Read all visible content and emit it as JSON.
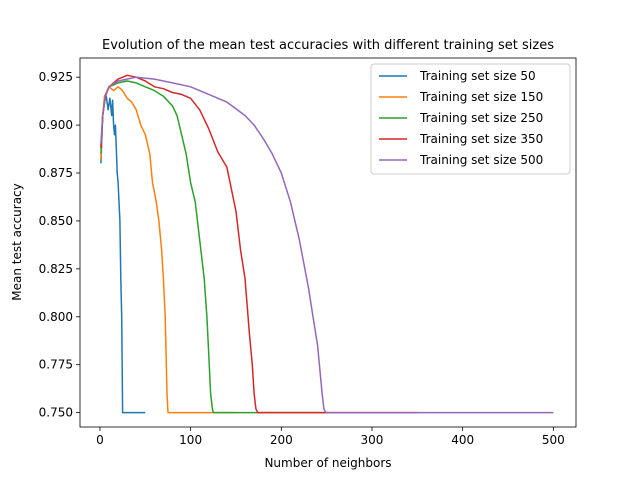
{
  "chart_data": {
    "type": "line",
    "title": "Evolution of the mean test accuracies with different training set sizes",
    "xlabel": "Number of neighbors",
    "ylabel": "Mean test accuracy",
    "xlim": [
      -22,
      525
    ],
    "ylim": [
      0.7425,
      0.935
    ],
    "xticks": [
      0,
      100,
      200,
      300,
      400,
      500
    ],
    "yticks": [
      0.75,
      0.775,
      0.8,
      0.825,
      0.85,
      0.875,
      0.9,
      0.925
    ],
    "grid": false,
    "legend_position": "top-right",
    "series": [
      {
        "name": "Training set size 50",
        "color": "#1f77b4",
        "x": [
          1,
          3,
          5,
          7,
          9,
          11,
          13,
          14,
          15,
          16,
          17,
          18,
          19,
          20,
          21,
          22,
          23,
          24,
          25,
          30,
          40,
          50
        ],
        "y": [
          0.88,
          0.905,
          0.912,
          0.915,
          0.908,
          0.914,
          0.905,
          0.913,
          0.9,
          0.895,
          0.9,
          0.888,
          0.875,
          0.87,
          0.86,
          0.85,
          0.82,
          0.8,
          0.75,
          0.75,
          0.75,
          0.75
        ]
      },
      {
        "name": "Training set size 150",
        "color": "#ff7f0e",
        "x": [
          1,
          3,
          5,
          8,
          10,
          15,
          20,
          25,
          30,
          35,
          40,
          45,
          50,
          55,
          58,
          60,
          62,
          65,
          68,
          70,
          72,
          73,
          74,
          75,
          80,
          100,
          150
        ],
        "y": [
          0.882,
          0.905,
          0.915,
          0.918,
          0.92,
          0.918,
          0.92,
          0.918,
          0.914,
          0.912,
          0.908,
          0.9,
          0.895,
          0.885,
          0.87,
          0.865,
          0.86,
          0.85,
          0.835,
          0.82,
          0.8,
          0.78,
          0.76,
          0.75,
          0.75,
          0.75,
          0.75
        ]
      },
      {
        "name": "Training set size 250",
        "color": "#2ca02c",
        "x": [
          1,
          3,
          6,
          10,
          20,
          30,
          40,
          50,
          60,
          70,
          80,
          85,
          90,
          95,
          100,
          105,
          110,
          115,
          118,
          120,
          122,
          124,
          125,
          150,
          200,
          250
        ],
        "y": [
          0.885,
          0.905,
          0.915,
          0.92,
          0.922,
          0.923,
          0.922,
          0.92,
          0.918,
          0.915,
          0.91,
          0.905,
          0.895,
          0.885,
          0.87,
          0.86,
          0.84,
          0.82,
          0.8,
          0.78,
          0.76,
          0.752,
          0.75,
          0.75,
          0.75,
          0.75
        ]
      },
      {
        "name": "Training set size 350",
        "color": "#d62728",
        "x": [
          1,
          3,
          6,
          10,
          20,
          30,
          40,
          50,
          60,
          70,
          80,
          90,
          100,
          110,
          120,
          130,
          140,
          150,
          155,
          160,
          165,
          168,
          170,
          172,
          174,
          175,
          200,
          250,
          300,
          350
        ],
        "y": [
          0.888,
          0.905,
          0.915,
          0.92,
          0.924,
          0.926,
          0.925,
          0.923,
          0.92,
          0.919,
          0.917,
          0.916,
          0.914,
          0.908,
          0.898,
          0.886,
          0.878,
          0.855,
          0.835,
          0.82,
          0.79,
          0.775,
          0.76,
          0.752,
          0.75,
          0.75,
          0.75,
          0.75,
          0.75,
          0.75
        ]
      },
      {
        "name": "Training set size 500",
        "color": "#9467bd",
        "x": [
          1,
          3,
          6,
          10,
          20,
          40,
          60,
          80,
          100,
          120,
          140,
          160,
          170,
          180,
          190,
          200,
          210,
          220,
          230,
          235,
          240,
          242,
          245,
          247,
          249,
          250,
          300,
          350,
          400,
          450,
          500
        ],
        "y": [
          0.89,
          0.905,
          0.915,
          0.92,
          0.923,
          0.925,
          0.924,
          0.922,
          0.92,
          0.916,
          0.912,
          0.905,
          0.9,
          0.893,
          0.885,
          0.875,
          0.86,
          0.84,
          0.815,
          0.8,
          0.785,
          0.775,
          0.76,
          0.752,
          0.75,
          0.75,
          0.75,
          0.75,
          0.75,
          0.75,
          0.75
        ]
      }
    ]
  }
}
